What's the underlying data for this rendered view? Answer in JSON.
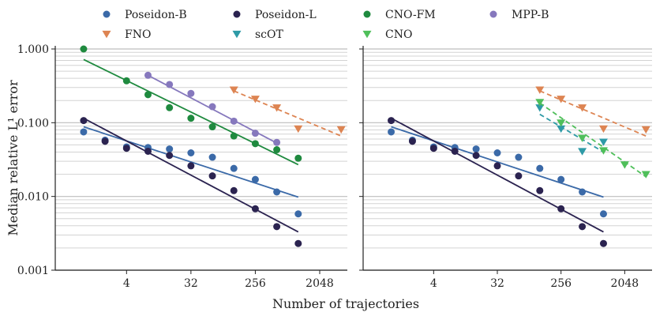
{
  "chart_data": {
    "type": "scatter",
    "xscale": "log2",
    "yscale": "log10",
    "xlabel": "Number of trajectories",
    "ylabel": "Median relative L¹ error",
    "ylim": [
      0.001,
      1.0
    ],
    "xlim": [
      0.4,
      5000
    ],
    "xticks": [
      4,
      32,
      256,
      2048
    ],
    "xtick_labels": [
      "4",
      "32",
      "256",
      "2048"
    ],
    "yticks": [
      0.001,
      0.01,
      0.1,
      1.0
    ],
    "ytick_labels": [
      "0.001",
      "0.010",
      "0.100",
      "1.000"
    ],
    "legend": [
      {
        "name": "Poseidon-B",
        "color": "#3b6aa8",
        "marker": "circle"
      },
      {
        "name": "Poseidon-L",
        "color": "#2b2350",
        "marker": "circle"
      },
      {
        "name": "CNO-FM",
        "color": "#1f8a3f",
        "marker": "circle"
      },
      {
        "name": "MPP-B",
        "color": "#8678bd",
        "marker": "circle"
      },
      {
        "name": "FNO",
        "color": "#dd8452",
        "marker": "triangle-down"
      },
      {
        "name": "scOT",
        "color": "#2e9aa6",
        "marker": "triangle-down"
      },
      {
        "name": "CNO",
        "color": "#4fbf5a",
        "marker": "triangle-down"
      }
    ],
    "panels": [
      {
        "name": "left",
        "series": [
          {
            "name": "Poseidon-B",
            "color": "#3b6aa8",
            "marker": "circle",
            "x": [
              1,
              2,
              4,
              8,
              16,
              32,
              64,
              128,
              256,
              512,
              1024
            ],
            "y": [
              0.075,
              0.058,
              0.047,
              0.046,
              0.044,
              0.039,
              0.034,
              0.024,
              0.017,
              0.0115,
              0.0058
            ],
            "fit": {
              "x": [
                1,
                1024
              ],
              "y": [
                0.088,
                0.0098
              ],
              "dashed": false
            }
          },
          {
            "name": "Poseidon-L",
            "color": "#2b2350",
            "marker": "circle",
            "x": [
              1,
              2,
              4,
              8,
              16,
              32,
              64,
              128,
              256,
              512,
              1024
            ],
            "y": [
              0.107,
              0.056,
              0.045,
              0.041,
              0.036,
              0.026,
              0.019,
              0.012,
              0.0068,
              0.0039,
              0.0023
            ],
            "fit": {
              "x": [
                1,
                1024
              ],
              "y": [
                0.115,
                0.0033
              ],
              "dashed": false
            }
          },
          {
            "name": "CNO-FM",
            "color": "#1f8a3f",
            "marker": "circle",
            "x": [
              1,
              4,
              8,
              16,
              32,
              64,
              128,
              256,
              512,
              1024
            ],
            "y": [
              1.0,
              0.37,
              0.24,
              0.16,
              0.115,
              0.088,
              0.066,
              0.052,
              0.043,
              0.033
            ],
            "fit": {
              "x": [
                1,
                1024
              ],
              "y": [
                0.72,
                0.027
              ],
              "dashed": false
            }
          },
          {
            "name": "MPP-B",
            "color": "#8678bd",
            "marker": "circle",
            "x": [
              8,
              16,
              32,
              64,
              128,
              256,
              512
            ],
            "y": [
              0.44,
              0.33,
              0.25,
              0.165,
              0.105,
              0.072,
              0.054
            ],
            "fit": {
              "x": [
                8,
                512
              ],
              "y": [
                0.44,
                0.053
              ],
              "dashed": false
            }
          },
          {
            "name": "FNO",
            "color": "#dd8452",
            "marker": "triangle-down",
            "x": [
              128,
              256,
              512,
              1024,
              4096
            ],
            "y": [
              0.28,
              0.21,
              0.16,
              0.083,
              0.081
            ],
            "fit": {
              "x": [
                128,
                4096
              ],
              "y": [
                0.27,
                0.066
              ],
              "dashed": true
            }
          }
        ]
      },
      {
        "name": "right",
        "series": [
          {
            "name": "Poseidon-B",
            "color": "#3b6aa8",
            "marker": "circle",
            "x": [
              1,
              2,
              4,
              8,
              16,
              32,
              64,
              128,
              256,
              512,
              1024
            ],
            "y": [
              0.075,
              0.058,
              0.047,
              0.046,
              0.044,
              0.039,
              0.034,
              0.024,
              0.017,
              0.0115,
              0.0058
            ],
            "fit": {
              "x": [
                1,
                1024
              ],
              "y": [
                0.088,
                0.0098
              ],
              "dashed": false
            }
          },
          {
            "name": "Poseidon-L",
            "color": "#2b2350",
            "marker": "circle",
            "x": [
              1,
              2,
              4,
              8,
              16,
              32,
              64,
              128,
              256,
              512,
              1024
            ],
            "y": [
              0.107,
              0.056,
              0.045,
              0.041,
              0.036,
              0.026,
              0.019,
              0.012,
              0.0068,
              0.0039,
              0.0023
            ],
            "fit": {
              "x": [
                1,
                1024
              ],
              "y": [
                0.115,
                0.0033
              ],
              "dashed": false
            }
          },
          {
            "name": "FNO",
            "color": "#dd8452",
            "marker": "triangle-down",
            "x": [
              128,
              256,
              512,
              1024,
              4096
            ],
            "y": [
              0.28,
              0.21,
              0.16,
              0.083,
              0.081
            ],
            "fit": {
              "x": [
                128,
                4096
              ],
              "y": [
                0.27,
                0.066
              ],
              "dashed": true
            }
          },
          {
            "name": "scOT",
            "color": "#2e9aa6",
            "marker": "triangle-down",
            "x": [
              128,
              256,
              512,
              1024
            ],
            "y": [
              0.16,
              0.083,
              0.041,
              0.055
            ],
            "fit": {
              "x": [
                128,
                1024
              ],
              "y": [
                0.13,
                0.04
              ],
              "dashed": true
            }
          },
          {
            "name": "CNO",
            "color": "#4fbf5a",
            "marker": "triangle-down",
            "x": [
              128,
              256,
              512,
              1024,
              2048,
              4096
            ],
            "y": [
              0.19,
              0.1,
              0.062,
              0.042,
              0.027,
              0.02
            ],
            "fit": {
              "x": [
                128,
                4096
              ],
              "y": [
                0.185,
                0.0185
              ],
              "dashed": true
            }
          }
        ]
      }
    ]
  }
}
